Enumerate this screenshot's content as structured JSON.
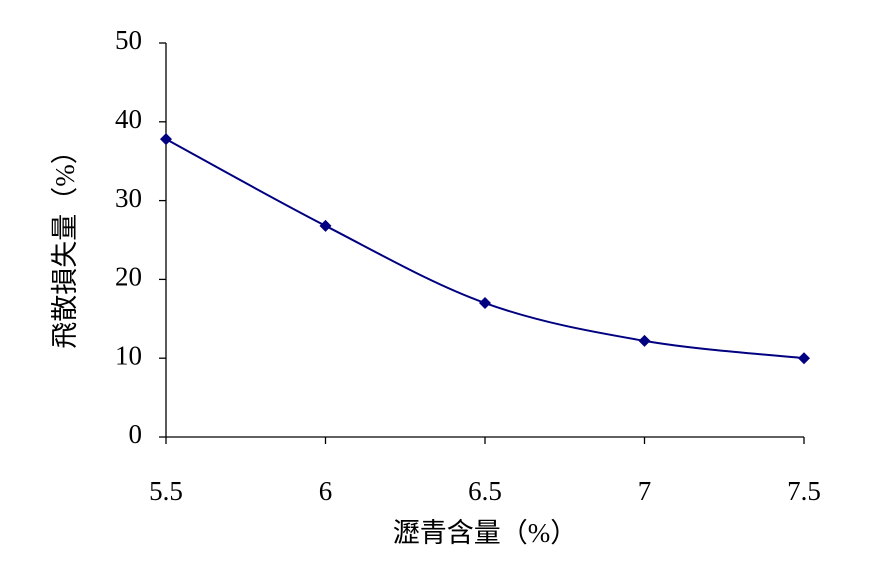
{
  "chart_data": {
    "type": "line",
    "x_label": "瀝青含量（%）",
    "y_label": "飛散損失量（%）",
    "x": [
      5.5,
      6,
      6.5,
      7,
      7.5
    ],
    "series": [
      {
        "name": "飛散損失量",
        "color": "#000080",
        "values": [
          37.8,
          26.8,
          17,
          12.2,
          10
        ]
      }
    ],
    "xlim": [
      5.5,
      7.5
    ],
    "xticks": [
      5.5,
      6,
      6.5,
      7,
      7.5
    ],
    "ylim": [
      0,
      50
    ],
    "yticks": [
      0,
      10,
      20,
      30,
      40,
      50
    ],
    "grid": false,
    "marker": "diamond",
    "smooth": true
  }
}
